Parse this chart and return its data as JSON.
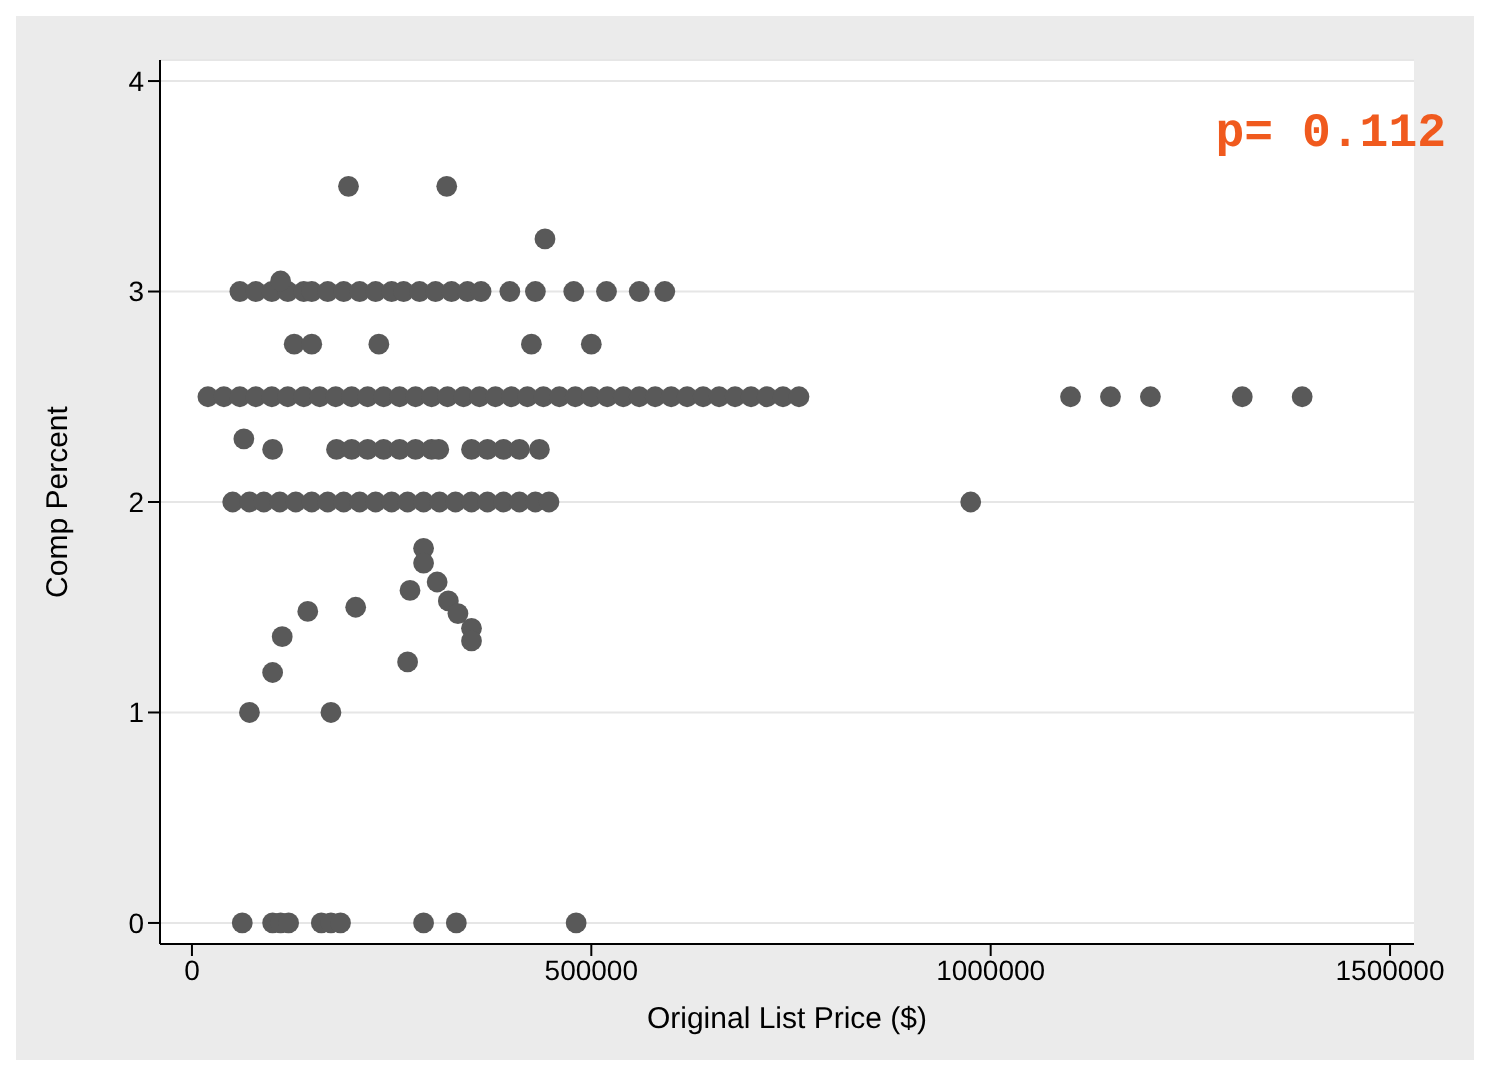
{
  "chart_data": {
    "type": "scatter",
    "xlabel": "Original List Price ($)",
    "ylabel": "Comp Percent",
    "annotations": [
      "p= 0.112"
    ],
    "xlim": [
      -40000,
      1530000
    ],
    "xticks": [
      0,
      500000,
      1000000,
      1500000
    ],
    "ylim": [
      -0.1,
      4.1
    ],
    "yticks": [
      0,
      1,
      2,
      3,
      4
    ],
    "grid": "y",
    "marker": "circle",
    "series": [
      {
        "color": "#595959",
        "x": [
          20000,
          40000,
          60000,
          80000,
          100000,
          120000,
          140000,
          160000,
          180000,
          200000,
          220000,
          240000,
          260000,
          280000,
          300000,
          320000,
          340000,
          360000,
          380000,
          400000,
          420000,
          440000,
          460000,
          480000,
          500000,
          520000,
          540000,
          560000,
          580000,
          600000,
          620000,
          640000,
          660000,
          680000,
          700000,
          720000,
          740000,
          760000,
          1100000,
          1150000,
          1200000,
          1315000,
          1390000,
          60000,
          80000,
          100000,
          120000,
          140000,
          150000,
          170000,
          190000,
          210000,
          230000,
          250000,
          265000,
          285000,
          305000,
          325000,
          345000,
          362000,
          398000,
          430000,
          478000,
          519000,
          560000,
          592000,
          111000,
          196000,
          319000,
          442000,
          128000,
          150000,
          234000,
          425000,
          500000,
          65000,
          101000,
          181000,
          200000,
          220000,
          240000,
          260000,
          280000,
          300000,
          309000,
          350000,
          370000,
          390000,
          410000,
          435000,
          51000,
          72000,
          90000,
          110000,
          130000,
          150000,
          170000,
          190000,
          210000,
          230000,
          250000,
          270000,
          290000,
          310000,
          330000,
          350000,
          370000,
          390000,
          410000,
          430000,
          447000,
          975000,
          290000,
          290000,
          307000,
          321000,
          333000,
          350000,
          350000,
          273000,
          270000,
          205000,
          145000,
          113000,
          101000,
          72000,
          174000,
          63000,
          101000,
          111000,
          121000,
          162000,
          174000,
          186000,
          290000,
          331000,
          481000
        ],
        "values": [
          2.5,
          2.5,
          2.5,
          2.5,
          2.5,
          2.5,
          2.5,
          2.5,
          2.5,
          2.5,
          2.5,
          2.5,
          2.5,
          2.5,
          2.5,
          2.5,
          2.5,
          2.5,
          2.5,
          2.5,
          2.5,
          2.5,
          2.5,
          2.5,
          2.5,
          2.5,
          2.5,
          2.5,
          2.5,
          2.5,
          2.5,
          2.5,
          2.5,
          2.5,
          2.5,
          2.5,
          2.5,
          2.5,
          2.5,
          2.5,
          2.5,
          2.5,
          2.5,
          3,
          3,
          3,
          3,
          3,
          3,
          3,
          3,
          3,
          3,
          3,
          3,
          3,
          3,
          3,
          3,
          3,
          3,
          3,
          3,
          3,
          3,
          3,
          3.05,
          3.5,
          3.5,
          3.25,
          2.75,
          2.75,
          2.75,
          2.75,
          2.75,
          2.3,
          2.25,
          2.25,
          2.25,
          2.25,
          2.25,
          2.25,
          2.25,
          2.25,
          2.25,
          2.25,
          2.25,
          2.25,
          2.25,
          2.25,
          2,
          2,
          2,
          2,
          2,
          2,
          2,
          2,
          2,
          2,
          2,
          2,
          2,
          2,
          2,
          2,
          2,
          2,
          2,
          2,
          2,
          2,
          1.78,
          1.71,
          1.62,
          1.53,
          1.47,
          1.4,
          1.34,
          1.58,
          1.24,
          1.5,
          1.48,
          1.36,
          1.19,
          1,
          1,
          0,
          0,
          0,
          0,
          0,
          0,
          0,
          0,
          0,
          0
        ]
      }
    ]
  }
}
